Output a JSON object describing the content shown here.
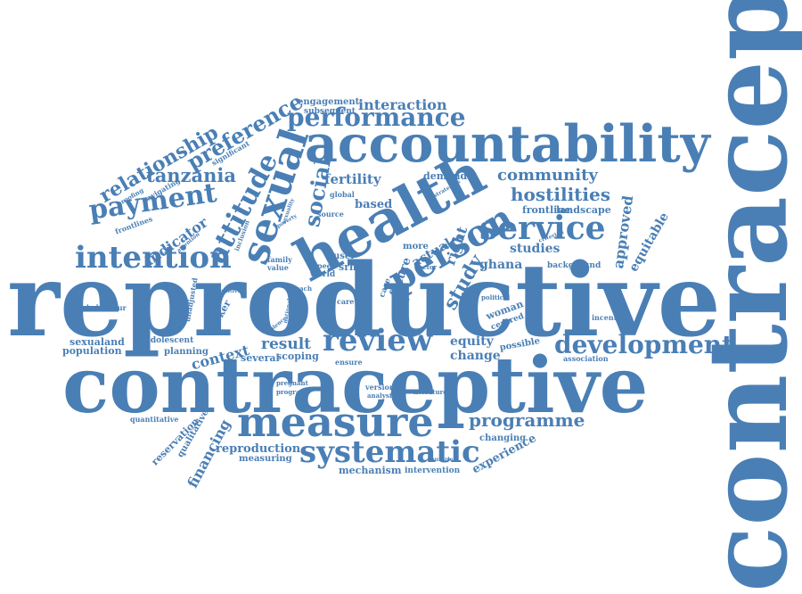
{
  "color": "#4a7fb5",
  "words": {
    "contraception": "contraception",
    "reproductive": "reproductive",
    "contraceptive": "contraceptive",
    "accountability": "accountability",
    "health": "health",
    "measure": "measure",
    "sexual": "sexual",
    "person": "person",
    "systematic": "systematic",
    "review": "review",
    "development": "development",
    "service": "service",
    "intention": "intention",
    "performance": "performance",
    "payment": "payment",
    "attitude": "attitude",
    "preference": "preference",
    "relationship": "relationship",
    "tanzania": "tanzania",
    "social": "social",
    "programme": "programme",
    "community": "community",
    "hostilities": "hostilities",
    "interaction": "interaction",
    "engagement": "engagement",
    "subsequent": "subsequent",
    "fertility": "fertility",
    "based": "based",
    "demand": "demand",
    "study": "study",
    "right": "right",
    "approved": "approved",
    "equitable": "equitable",
    "studies": "studies",
    "ghana": "ghana",
    "frontline": "frontline",
    "landscape": "landscape",
    "indicator": "indicator",
    "context": "context",
    "result": "result",
    "scoping": "scoping",
    "several": "several",
    "reproduction": "reproduction",
    "measuring": "measuring",
    "mechanism": "mechanism",
    "intervention": "intervention",
    "experience": "experience",
    "changing": "changing",
    "financing": "financing",
    "reservation": "reservation",
    "qualitative": "qualitative",
    "quantitative": "quantitative",
    "sexualand": "sexualand",
    "population": "population",
    "adolescent": "adolescent",
    "planning": "planning",
    "behaviour": "behaviour",
    "equity": "equity",
    "change": "change",
    "association": "association",
    "background": "background",
    "possible": "possible",
    "incentive": "incentive",
    "political": "political",
    "woman": "woman",
    "centred": "centred",
    "actual": "actual",
    "future": "future",
    "more": "more",
    "case": "case",
    "user": "user",
    "srhr": "srhr",
    "peer": "peer",
    "world": "world",
    "family": "family",
    "value": "value",
    "global": "global",
    "source": "source",
    "navigating": "navigating",
    "frontlines": "frontlines",
    "proofing": "proofing",
    "significant": "significant",
    "inclusion": "inclusion",
    "unadjusted": "unadjusted",
    "worker": "worker",
    "positive": "positive",
    "ensure": "ensure",
    "pregnant": "pregnant",
    "program": "program",
    "version": "version",
    "analysis": "analysis",
    "literature": "literature",
    "countrie": "countrie",
    "criterion": "criterion",
    "strategies": "strategies",
    "poverty": "poverty",
    "sexuality": "sexuality",
    "reach": "reach",
    "care": "care",
    "kpd": "kpd",
    "sector": "sector",
    "national": "national",
    "violence": "violence",
    "attention": "attention"
  }
}
